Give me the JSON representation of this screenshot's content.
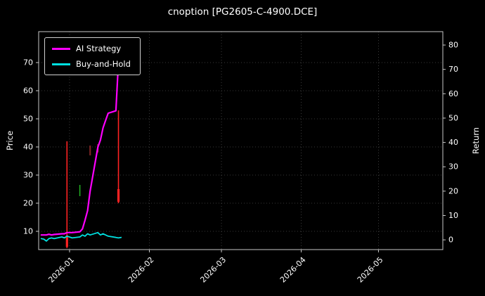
{
  "title": "cnoption [PG2605-C-4900.DCE]",
  "chart_data": {
    "type": "line",
    "title": "cnoption [PG2605-C-4900.DCE]",
    "background": "#000000",
    "text_color": "#ffffff",
    "grid": true,
    "grid_color": "#4a4a4a",
    "spine_color": "#c8c8c8",
    "legend_position": "upper-left",
    "x_range": [
      "2025-12-20",
      "2026-05-26"
    ],
    "x_ticks": [
      {
        "label": "2026-01",
        "date": "2026-01-01"
      },
      {
        "label": "2026-02",
        "date": "2026-02-01"
      },
      {
        "label": "2026-03",
        "date": "2026-03-01"
      },
      {
        "label": "2026-04",
        "date": "2026-04-01"
      },
      {
        "label": "2026-05",
        "date": "2026-05-01"
      }
    ],
    "left_axis": {
      "label": "Price",
      "ticks": [
        10,
        20,
        30,
        40,
        50,
        60,
        70
      ],
      "range": [
        3.5,
        81
      ]
    },
    "right_axis": {
      "label": "Return",
      "ticks": [
        0,
        10,
        20,
        30,
        40,
        50,
        60,
        70,
        80
      ],
      "range": [
        -4,
        85.5
      ]
    },
    "legend": [
      {
        "label": "AI Strategy",
        "color": "#ff00ff"
      },
      {
        "label": "Buy-and-Hold",
        "color": "#00e0e0"
      }
    ],
    "series": [
      {
        "name": "AI Strategy",
        "axis": "right",
        "color": "#ff00ff",
        "line_width": 2.2,
        "x": [
          "2025-12-21",
          "2025-12-22",
          "2025-12-23",
          "2025-12-24",
          "2025-12-25",
          "2025-12-26",
          "2025-12-29",
          "2025-12-30",
          "2025-12-31",
          "2026-01-02",
          "2026-01-05",
          "2026-01-06",
          "2026-01-07",
          "2026-01-08",
          "2026-01-09",
          "2026-01-12",
          "2026-01-13",
          "2026-01-14",
          "2026-01-15",
          "2026-01-16",
          "2026-01-19",
          "2026-01-20"
        ],
        "values": [
          2,
          2,
          2,
          2.3,
          2,
          2.2,
          2.5,
          2.5,
          3,
          3,
          3.3,
          4.5,
          8,
          12,
          20,
          38,
          41,
          46,
          49,
          52,
          53,
          73
        ]
      },
      {
        "name": "Buy-and-Hold",
        "axis": "right",
        "color": "#00e0e0",
        "line_width": 1.8,
        "x": [
          "2025-12-21",
          "2025-12-22",
          "2025-12-23",
          "2025-12-24",
          "2025-12-25",
          "2025-12-26",
          "2025-12-29",
          "2025-12-30",
          "2025-12-31",
          "2026-01-02",
          "2026-01-05",
          "2026-01-06",
          "2026-01-07",
          "2026-01-08",
          "2026-01-09",
          "2026-01-12",
          "2026-01-13",
          "2026-01-14",
          "2026-01-15",
          "2026-01-16",
          "2026-01-19",
          "2026-01-20",
          "2026-01-21"
        ],
        "values": [
          0.5,
          0.3,
          -0.5,
          0.5,
          0.8,
          0.5,
          1.2,
          0.8,
          1.5,
          0.8,
          1.2,
          2,
          1.5,
          2.5,
          2,
          3,
          2,
          2.5,
          2,
          1.5,
          1,
          0.8,
          1
        ]
      }
    ],
    "candles": [
      {
        "date": "2025-12-31",
        "low": 4,
        "high": 42,
        "color": "#ff2222",
        "width": 1.6
      },
      {
        "date": "2025-12-31",
        "low": 4.5,
        "high": 8.5,
        "color": "#ff2222",
        "width": 3.2
      },
      {
        "date": "2026-01-05",
        "low": 22.5,
        "high": 26.5,
        "color": "#22aa22",
        "width": 1.6
      },
      {
        "date": "2026-01-09",
        "low": 37,
        "high": 40.5,
        "color": "#7a2424",
        "width": 2.2
      },
      {
        "date": "2026-01-12",
        "low": 38,
        "high": 41,
        "color": "#7a2424",
        "width": 2.2
      },
      {
        "date": "2026-01-20",
        "low": 20,
        "high": 53,
        "color": "#ff2222",
        "width": 1.6
      },
      {
        "date": "2026-01-20",
        "low": 20.5,
        "high": 25,
        "color": "#ff2222",
        "width": 3.2
      }
    ]
  }
}
